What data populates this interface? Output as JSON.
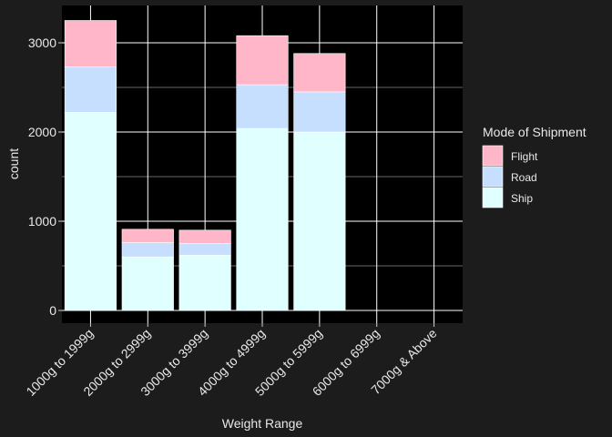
{
  "chart_data": {
    "type": "bar",
    "stacked": true,
    "xlabel": "Weight Range",
    "ylabel": "count",
    "ylim": [
      0,
      3400
    ],
    "yticks": [
      0,
      1000,
      2000,
      3000
    ],
    "grid": true,
    "legend_position": "right",
    "legend_title": "Mode of Shipment",
    "categories": [
      "1000g to 1999g",
      "2000g to 2999g",
      "3000g to 3999g",
      "4000g to 4999g",
      "5000g to 5999g",
      "6000g to 6999g",
      "7000g & Above"
    ],
    "series": [
      {
        "name": "Ship",
        "color": "#e0ffff",
        "values": [
          2220,
          600,
          620,
          2040,
          2000,
          0,
          0
        ]
      },
      {
        "name": "Road",
        "color": "#c6dfff",
        "values": [
          510,
          160,
          130,
          490,
          450,
          0,
          0
        ]
      },
      {
        "name": "Flight",
        "color": "#ffb6c8",
        "values": [
          520,
          150,
          150,
          550,
          430,
          0,
          0
        ]
      }
    ],
    "legend_order": [
      "Flight",
      "Road",
      "Ship"
    ]
  }
}
